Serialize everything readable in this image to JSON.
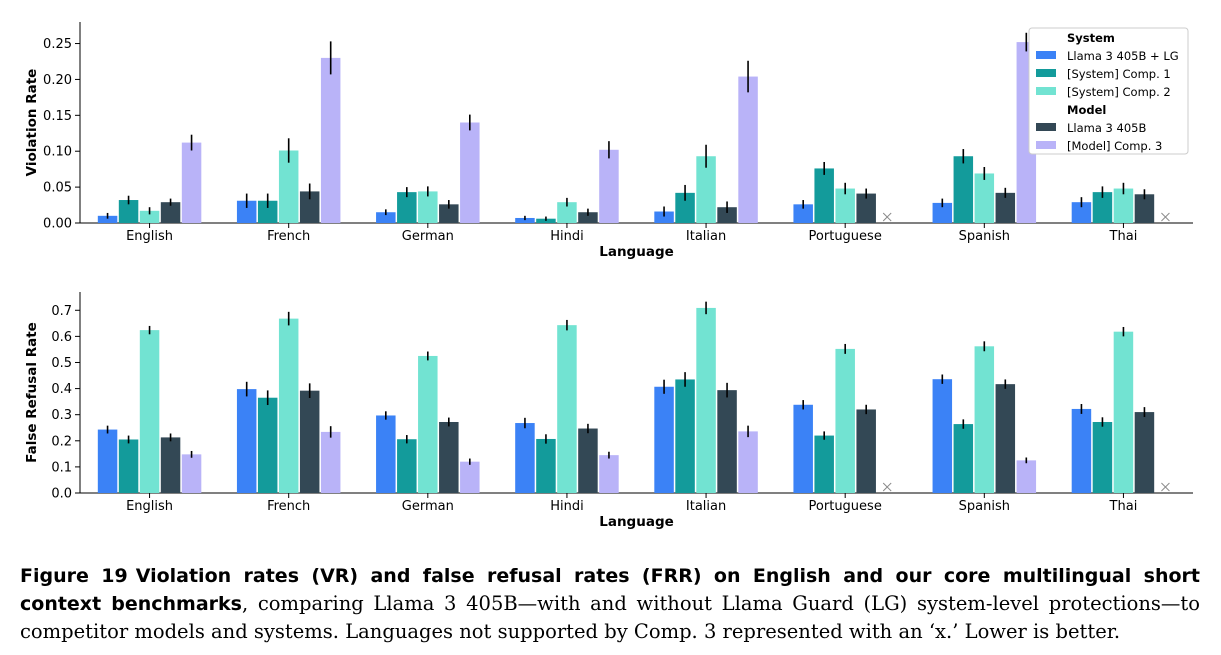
{
  "chart_data": [
    {
      "type": "bar",
      "xlabel": "Language",
      "ylabel": "Violation Rate",
      "ylim": [
        0,
        0.28
      ],
      "yticks": [
        0.0,
        0.05,
        0.1,
        0.15,
        0.2,
        0.25
      ],
      "ytick_labels": [
        "0.00",
        "0.05",
        "0.10",
        "0.15",
        "0.20",
        "0.25"
      ],
      "grid": false,
      "legend_position": "top-right",
      "categories": [
        "English",
        "French",
        "German",
        "Hindi",
        "Italian",
        "Portuguese",
        "Spanish",
        "Thai"
      ],
      "series": [
        {
          "name": "Llama 3 405B + LG",
          "color": "#3b82f6",
          "values": [
            0.01,
            0.031,
            0.015,
            0.007,
            0.016,
            0.026,
            0.028,
            0.029
          ],
          "errors": [
            0.004,
            0.01,
            0.004,
            0.003,
            0.007,
            0.006,
            0.006,
            0.007
          ]
        },
        {
          "name": "[System] Comp. 1",
          "color": "#139b9b",
          "values": [
            0.032,
            0.031,
            0.043,
            0.006,
            0.042,
            0.076,
            0.093,
            0.043
          ],
          "errors": [
            0.006,
            0.01,
            0.007,
            0.003,
            0.011,
            0.009,
            0.01,
            0.008
          ]
        },
        {
          "name": "[System] Comp. 2",
          "color": "#72e3d2",
          "values": [
            0.017,
            0.101,
            0.044,
            0.029,
            0.093,
            0.048,
            0.069,
            0.048
          ],
          "errors": [
            0.005,
            0.017,
            0.007,
            0.006,
            0.016,
            0.008,
            0.009,
            0.008
          ]
        },
        {
          "name": "Llama 3 405B",
          "color": "#334855",
          "values": [
            0.029,
            0.044,
            0.026,
            0.015,
            0.022,
            0.041,
            0.042,
            0.04
          ],
          "errors": [
            0.005,
            0.011,
            0.006,
            0.005,
            0.008,
            0.007,
            0.007,
            0.007
          ]
        },
        {
          "name": "[Model] Comp. 3",
          "color": "#b9b3f8",
          "values": [
            0.112,
            0.23,
            0.14,
            0.102,
            0.204,
            null,
            0.252,
            null
          ],
          "errors": [
            0.011,
            0.023,
            0.011,
            0.012,
            0.022,
            null,
            0.013,
            null
          ]
        }
      ],
      "legend": {
        "groups": [
          {
            "title": "System",
            "entries": [
              "Llama 3 405B + LG",
              "[System] Comp. 1",
              "[System] Comp. 2"
            ]
          },
          {
            "title": "Model",
            "entries": [
              "Llama 3 405B",
              "[Model] Comp. 3"
            ]
          }
        ]
      },
      "unsupported_marker": "x"
    },
    {
      "type": "bar",
      "xlabel": "Language",
      "ylabel": "False Refusal Rate",
      "ylim": [
        0,
        0.77
      ],
      "yticks": [
        0.0,
        0.1,
        0.2,
        0.3,
        0.4,
        0.5,
        0.6,
        0.7
      ],
      "ytick_labels": [
        "0.0",
        "0.1",
        "0.2",
        "0.3",
        "0.4",
        "0.5",
        "0.6",
        "0.7"
      ],
      "grid": false,
      "categories": [
        "English",
        "French",
        "German",
        "Hindi",
        "Italian",
        "Portuguese",
        "Spanish",
        "Thai"
      ],
      "series": [
        {
          "name": "Llama 3 405B + LG",
          "color": "#3b82f6",
          "values": [
            0.243,
            0.398,
            0.297,
            0.268,
            0.407,
            0.338,
            0.436,
            0.322
          ],
          "errors": [
            0.015,
            0.028,
            0.016,
            0.02,
            0.027,
            0.018,
            0.018,
            0.019
          ]
        },
        {
          "name": "[System] Comp. 1",
          "color": "#139b9b",
          "values": [
            0.205,
            0.365,
            0.206,
            0.207,
            0.435,
            0.22,
            0.264,
            0.272
          ],
          "errors": [
            0.015,
            0.028,
            0.016,
            0.018,
            0.028,
            0.016,
            0.018,
            0.018
          ]
        },
        {
          "name": "[System] Comp. 2",
          "color": "#72e3d2",
          "values": [
            0.624,
            0.668,
            0.525,
            0.643,
            0.709,
            0.552,
            0.562,
            0.618
          ],
          "errors": [
            0.016,
            0.026,
            0.017,
            0.02,
            0.024,
            0.019,
            0.019,
            0.018
          ]
        },
        {
          "name": "Llama 3 405B",
          "color": "#334855",
          "values": [
            0.213,
            0.392,
            0.272,
            0.247,
            0.394,
            0.32,
            0.417,
            0.31
          ],
          "errors": [
            0.015,
            0.028,
            0.017,
            0.018,
            0.028,
            0.018,
            0.018,
            0.019
          ]
        },
        {
          "name": "[Model] Comp. 3",
          "color": "#b9b3f8",
          "values": [
            0.148,
            0.234,
            0.12,
            0.145,
            0.236,
            null,
            0.125,
            null
          ],
          "errors": [
            0.013,
            0.022,
            0.012,
            0.013,
            0.022,
            null,
            0.011,
            null
          ]
        }
      ],
      "unsupported_marker": "x"
    }
  ],
  "caption": {
    "label": "Figure 19",
    "title": "Violation rates (VR) and false refusal rates (FRR) on English and our core multilingual short context benchmarks",
    "text": ", comparing Llama 3 405B—with and without Llama Guard (LG) system-level protections—to competitor models and systems. Languages not supported by Comp. 3 represented with an ‘x.’ Lower is better."
  }
}
